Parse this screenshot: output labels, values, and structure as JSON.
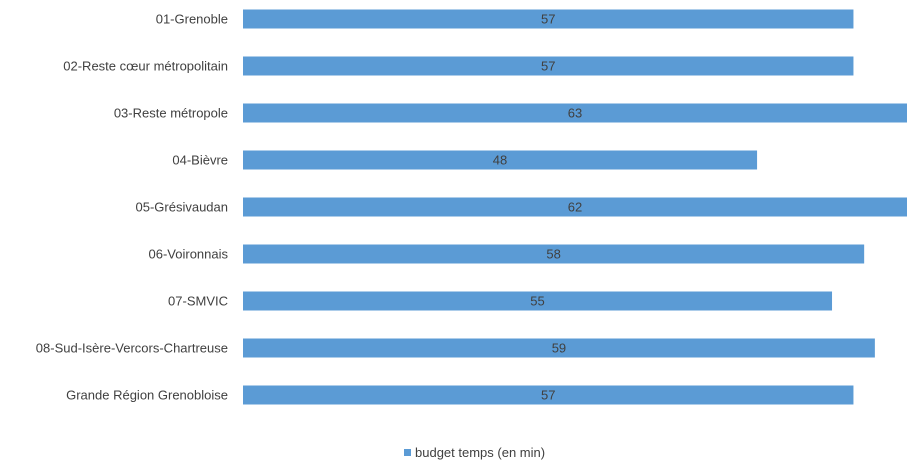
{
  "chart_data": {
    "type": "bar",
    "orientation": "horizontal",
    "categories": [
      "01-Grenoble",
      "02-Reste cœur métropolitain",
      "03-Reste métropole",
      "04-Bièvre",
      "05-Grésivaudan",
      "06-Voironnais",
      "07-SMVIC",
      "08-Sud-Isère-Vercors-Chartreuse",
      "Grande Région Grenobloise"
    ],
    "series": [
      {
        "name": "budget temps (en min)",
        "color": "#5b9bd5",
        "values": [
          57,
          57,
          63,
          48,
          62,
          58,
          55,
          59,
          57
        ]
      }
    ],
    "xlim": [
      0,
      62
    ],
    "grid": false,
    "legend_position": "bottom"
  }
}
